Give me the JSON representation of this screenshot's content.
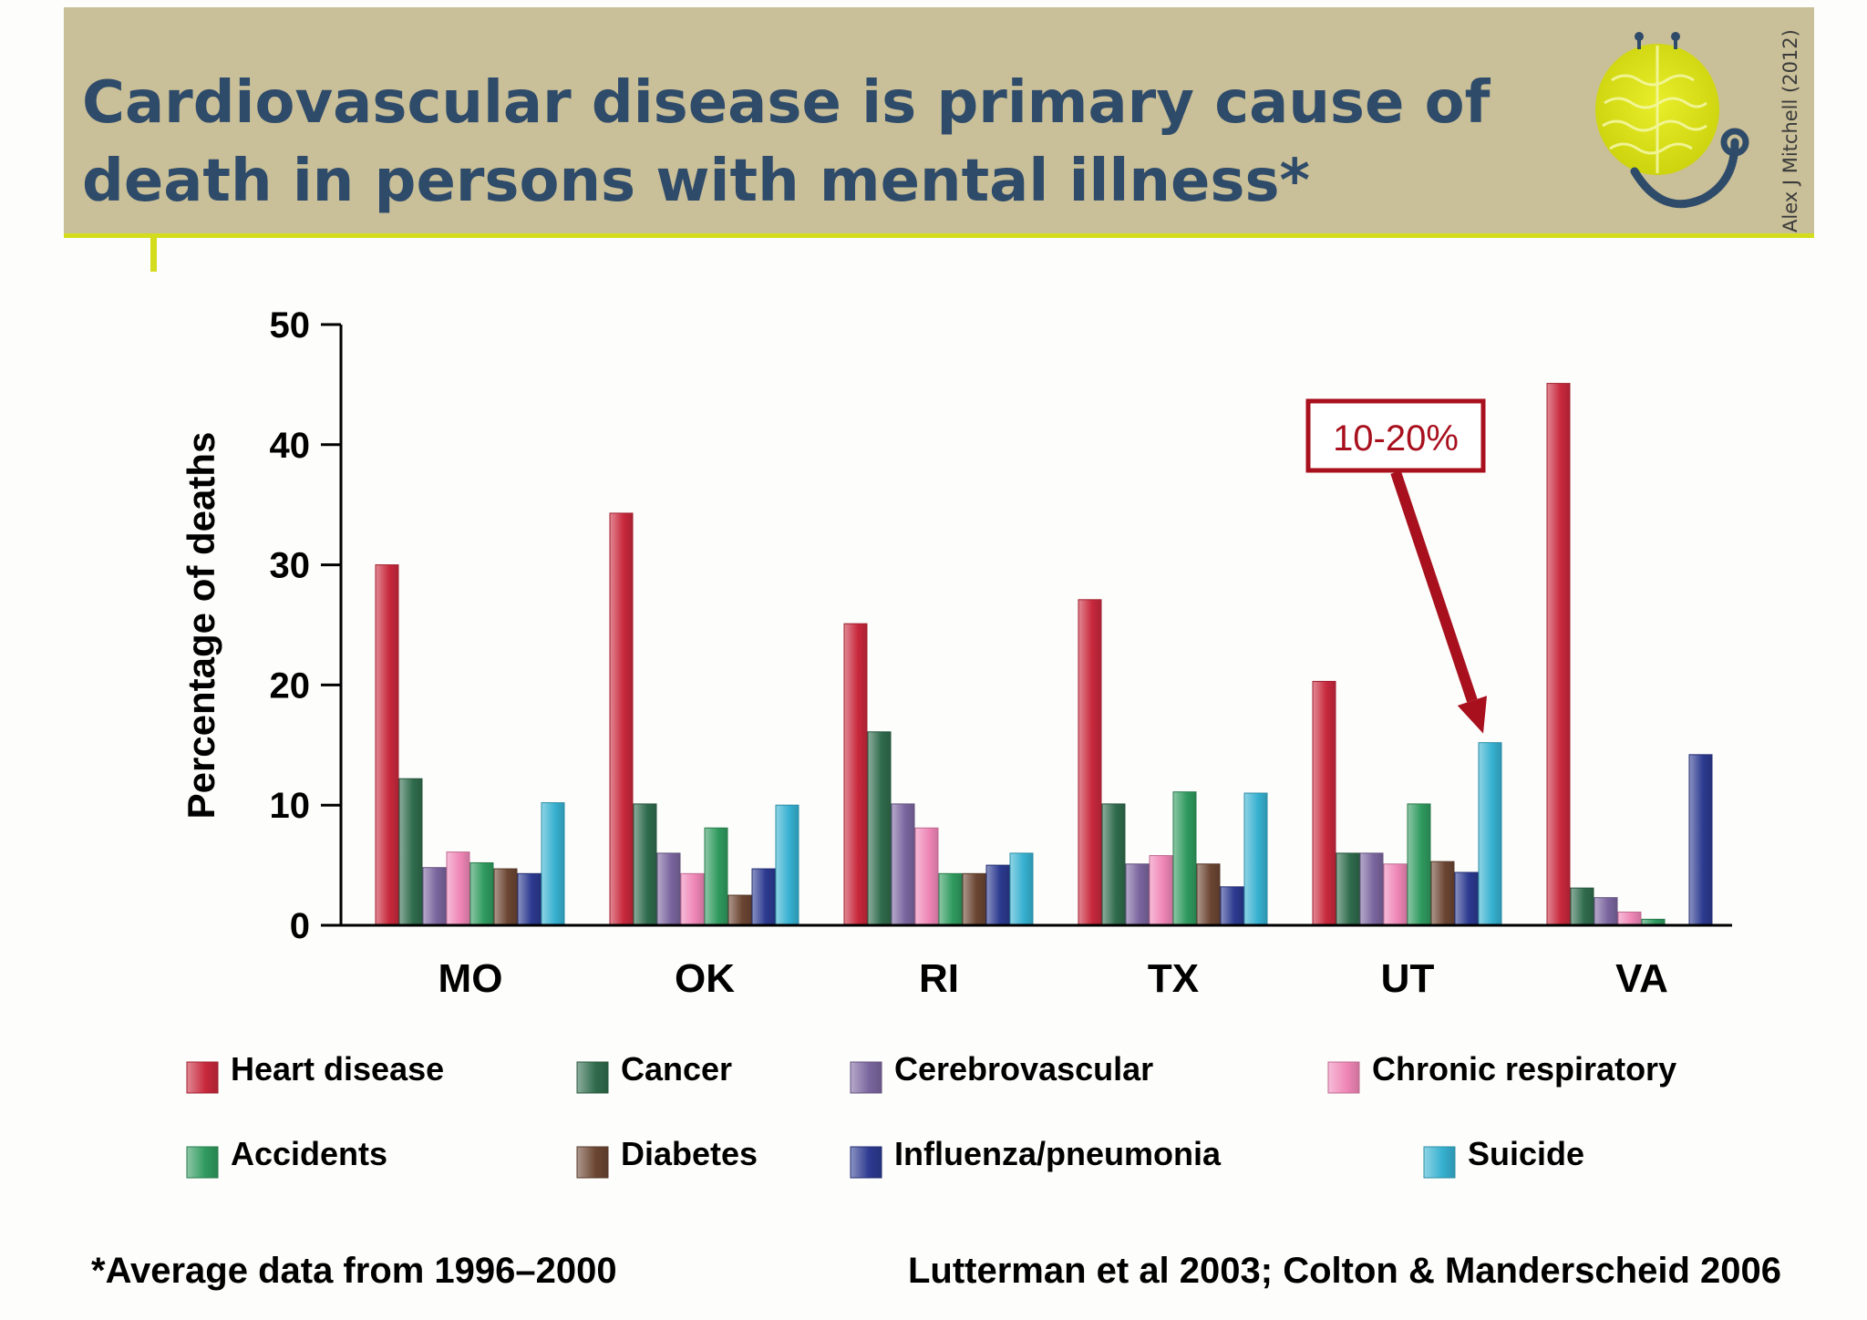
{
  "slide": {
    "title_line1": "Cardiovascular disease is primary cause of",
    "title_line2": "death in persons with mental illness*",
    "credit": "Alex J Mitchell (2012)",
    "footnote": "*Average data from 1996–2000",
    "source": "Lutterman et al 2003; Colton & Manderscheid 2006",
    "logo_icon": "stethoscope-brain-icon",
    "colors": {
      "header_bg": "#c9bf98",
      "accent_line": "#d4dc1e",
      "title": "#2f4b6a"
    }
  },
  "chart_data": {
    "type": "bar",
    "title": "",
    "xlabel": "",
    "ylabel": "Percentage of deaths",
    "ylim": [
      0,
      50
    ],
    "yticks": [
      0,
      10,
      20,
      30,
      40,
      50
    ],
    "grid": false,
    "legend_position": "bottom",
    "categories": [
      "MO",
      "OK",
      "RI",
      "TX",
      "UT",
      "VA"
    ],
    "series": [
      {
        "name": "Heart disease",
        "color": "#c8283c",
        "values": [
          30,
          34.3,
          25.1,
          27.1,
          20.3,
          45.1
        ]
      },
      {
        "name": "Cancer",
        "color": "#2f6b4c",
        "values": [
          12.2,
          10.1,
          16.1,
          10.1,
          6.0,
          3.1
        ]
      },
      {
        "name": "Cerebrovascular",
        "color": "#7a659e",
        "values": [
          4.8,
          6.0,
          10.1,
          5.1,
          6.0,
          2.3
        ]
      },
      {
        "name": "Chronic respiratory",
        "color": "#ef86b6",
        "values": [
          6.1,
          4.3,
          8.1,
          5.8,
          5.1,
          1.1
        ]
      },
      {
        "name": "Accidents",
        "color": "#2f9a5e",
        "values": [
          5.2,
          8.1,
          4.3,
          11.1,
          10.1,
          0.5
        ]
      },
      {
        "name": "Diabetes",
        "color": "#6b4532",
        "values": [
          4.7,
          2.5,
          4.3,
          5.1,
          5.3,
          0
        ]
      },
      {
        "name": "Influenza/pneumonia",
        "color": "#2c3a90",
        "values": [
          4.3,
          4.7,
          5.0,
          3.2,
          4.4,
          14.2
        ]
      },
      {
        "name": "Suicide",
        "color": "#36b0d0",
        "values": [
          10.2,
          10.0,
          6.0,
          11.0,
          15.2,
          0
        ]
      }
    ],
    "annotation": {
      "text": "10-20%",
      "target_category": "UT",
      "target_series": "Suicide",
      "color": "#a8101e"
    }
  }
}
